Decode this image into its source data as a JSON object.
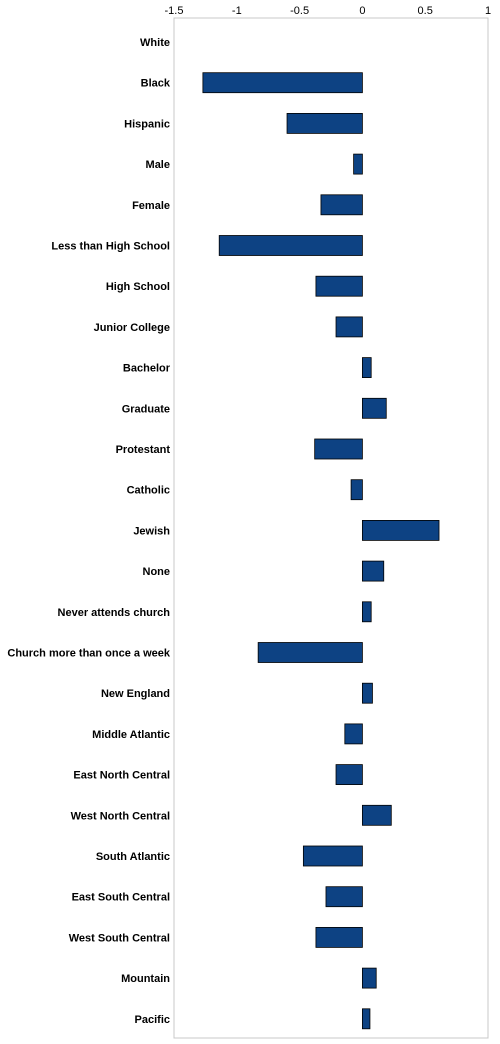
{
  "chart_data": {
    "type": "bar",
    "orientation": "horizontal",
    "title": "",
    "xlabel": "",
    "ylabel": "",
    "xlim": [
      -1.5,
      1
    ],
    "x_ticks": [
      -1.5,
      -1,
      -0.5,
      0,
      0.5,
      1
    ],
    "x_tick_labels": [
      "-1.5",
      "-1",
      "-0.5",
      "0",
      "0.5",
      "1"
    ],
    "x_axis_position": "top",
    "grid": false,
    "legend": "none",
    "bar_color": "#0d4283",
    "bar_edge_color": "#000000",
    "categories": [
      "White",
      "Black",
      "Hispanic",
      "Male",
      "Female",
      "Less than High School",
      "High School",
      "Junior College",
      "Bachelor",
      "Graduate",
      "Protestant",
      "Catholic",
      "Jewish",
      "None",
      "Never attends church",
      "Church more than once a week",
      "New England",
      "Middle Atlantic",
      "East North Central",
      "West North Central",
      "South Atlantic",
      "East South Central",
      "West South Central",
      "Mountain",
      "Pacific"
    ],
    "values": [
      0,
      -1.27,
      -0.6,
      -0.07,
      -0.33,
      -1.14,
      -0.37,
      -0.21,
      0.07,
      0.19,
      -0.38,
      -0.09,
      0.61,
      0.17,
      0.07,
      -0.83,
      0.08,
      -0.14,
      -0.21,
      0.23,
      -0.47,
      -0.29,
      -0.37,
      0.11,
      0.06
    ]
  }
}
